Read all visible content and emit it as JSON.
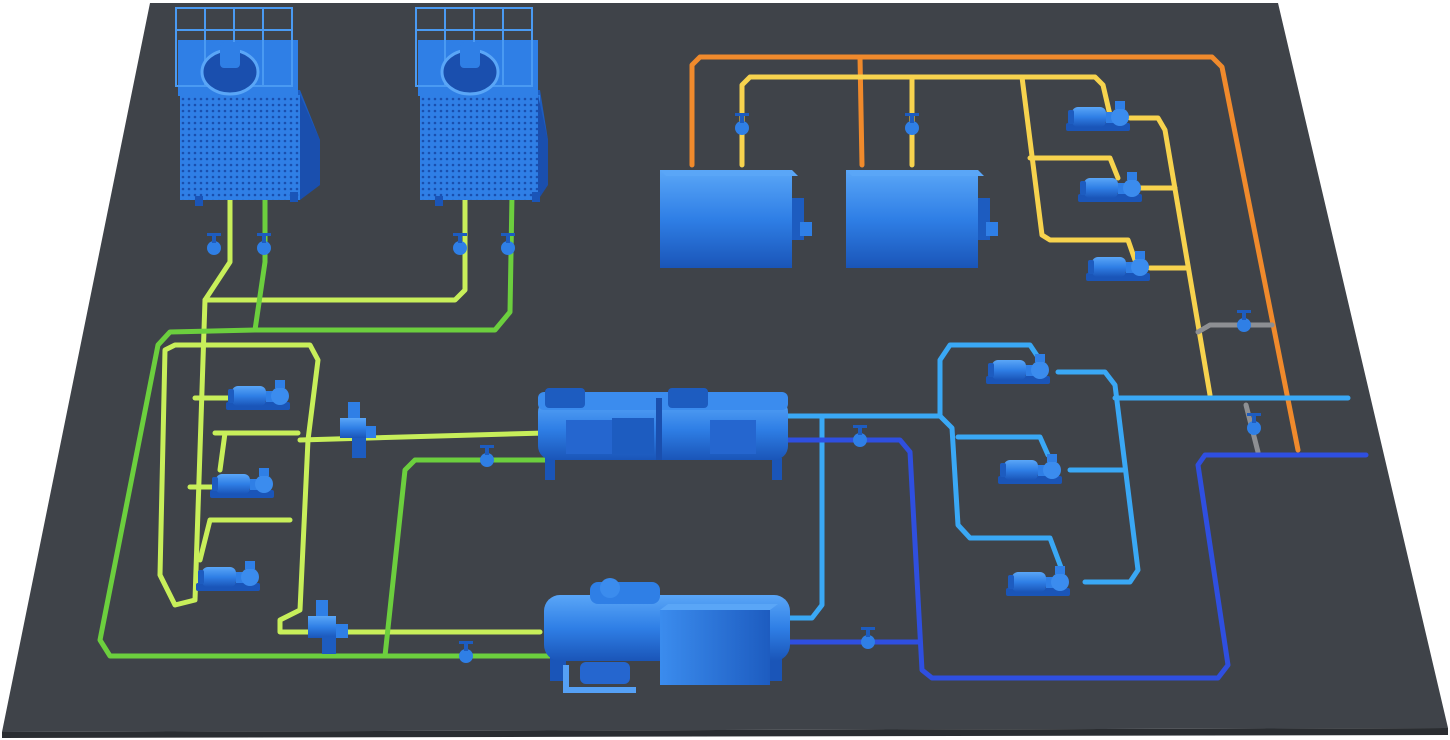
{
  "colors": {
    "background": "#ffffff",
    "floor": "#3f4349",
    "floor_edge": "#2a2d31",
    "equipment_blue": "#2f7fe6",
    "equipment_dark": "#1d5cc0",
    "equipment_light": "#55a0f5",
    "cooling_water_supply": "#c8ef5a",
    "cooling_water_return": "#6ccf3e",
    "hot_water_supply": "#f7d34e",
    "hot_water_return": "#f08a2c",
    "chilled_water_supply": "#3aa8f5",
    "chilled_water_return": "#2f4fe0",
    "bypass_gray": "#8d8f93"
  },
  "equipment": {
    "cooling_towers": 2,
    "boilers": 2,
    "chillers": 2,
    "cooling_water_pumps": 3,
    "hot_water_pumps": 3,
    "chilled_water_pumps": 3,
    "water_treatment_units": 2
  },
  "icons": {
    "cooling_tower": "cooling-tower-icon",
    "pump": "pump-icon",
    "valve": "valve-icon",
    "boiler": "boiler-icon",
    "chiller": "chiller-icon"
  }
}
